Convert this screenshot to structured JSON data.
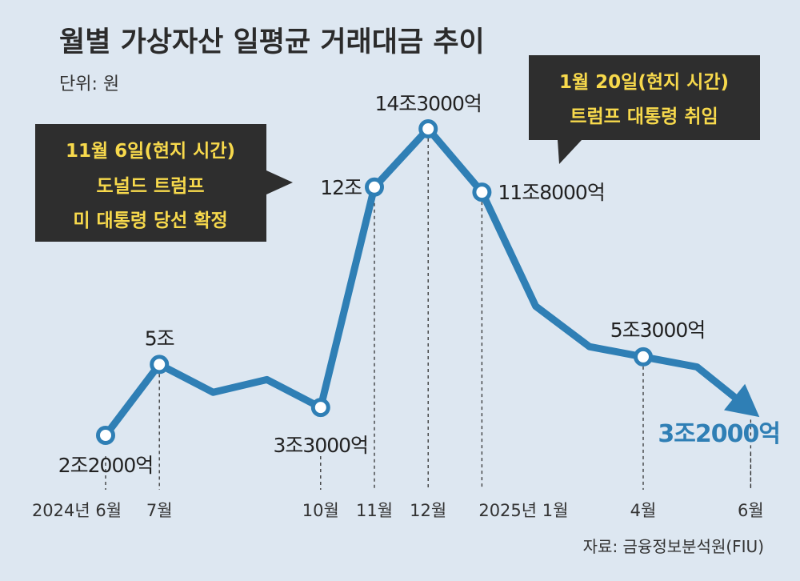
{
  "title": "월별 가상자산 일평균 거래대금 추이",
  "unit": "단위: 원",
  "source": "자료: 금융정보분석원(FIU)",
  "annotations": [
    {
      "lines": [
        "11월 6일(현지 시간)",
        "도널드 트럼프",
        "미 대통령 당선 확정"
      ]
    },
    {
      "lines": [
        "1월 20일(현지 시간)",
        "트럼프 대통령 취임"
      ]
    }
  ],
  "colors": {
    "background": "#dde7f1",
    "line": "#2f7fb5",
    "annotation_bg": "#2e2e2e",
    "annotation_text": "#f7d94c",
    "highlight_label": "#2f7fb5"
  },
  "chart_data": {
    "type": "line",
    "title": "월별 가상자산 일평균 거래대금 추이",
    "ylabel": "단위: 원",
    "x": [
      "2024-06",
      "2024-07",
      "2024-08",
      "2024-09",
      "2024-10",
      "2024-11",
      "2024-12",
      "2025-01",
      "2025-02",
      "2025-03",
      "2025-04",
      "2025-05",
      "2025-06"
    ],
    "values_trillion_won": [
      2.2,
      5.0,
      3.9,
      4.4,
      3.3,
      12.0,
      14.3,
      11.8,
      7.3,
      5.7,
      5.3,
      4.9,
      3.2
    ],
    "tick_labels": [
      "2024년 6월",
      "7월",
      "",
      "",
      "10월",
      "11월",
      "12월",
      "2025년 1월",
      "",
      "",
      "4월",
      "",
      "6월"
    ],
    "point_labels": [
      "2조2000억",
      "5조",
      "",
      "",
      "3조3000억",
      "12조",
      "14조3000억",
      "11조8000억",
      "",
      "",
      "5조3000억",
      "",
      "3조2000억"
    ],
    "ylim": [
      0,
      16
    ],
    "grid": false,
    "legend": "none"
  }
}
